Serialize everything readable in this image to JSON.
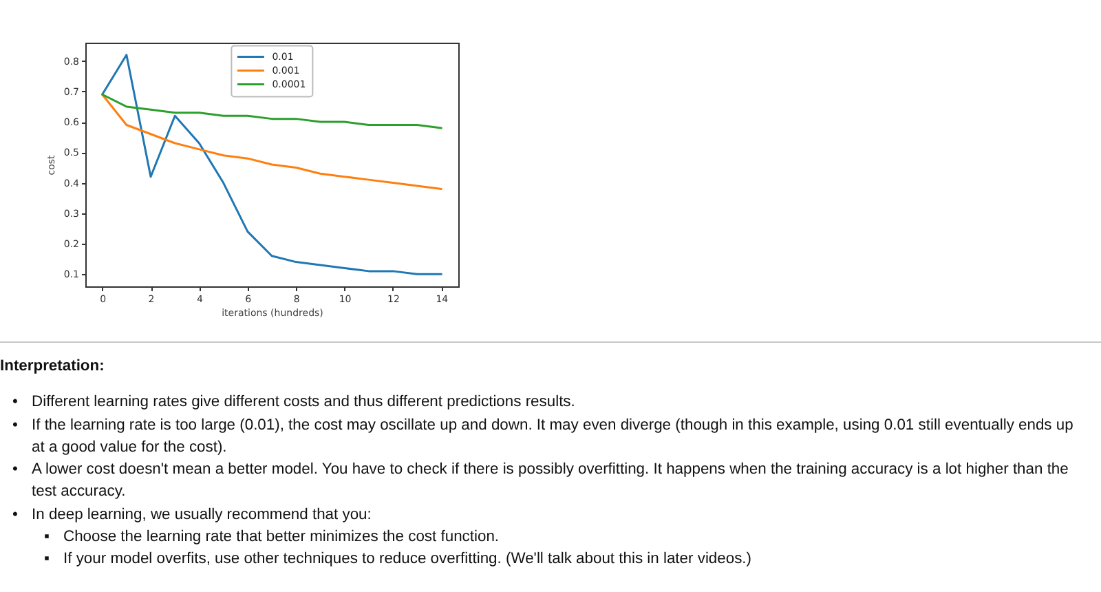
{
  "chart_data": {
    "type": "line",
    "xlabel": "iterations (hundreds)",
    "ylabel": "cost",
    "x": [
      0,
      1,
      2,
      3,
      4,
      5,
      6,
      7,
      8,
      9,
      10,
      11,
      12,
      13,
      14
    ],
    "series": [
      {
        "name": "0.01",
        "color": "#1f77b4",
        "values": [
          0.69,
          0.82,
          0.42,
          0.62,
          0.53,
          0.4,
          0.24,
          0.16,
          0.14,
          0.13,
          0.12,
          0.11,
          0.11,
          0.1,
          0.1
        ]
      },
      {
        "name": "0.001",
        "color": "#ff7f0e",
        "values": [
          0.69,
          0.59,
          0.56,
          0.53,
          0.51,
          0.49,
          0.48,
          0.46,
          0.45,
          0.43,
          0.42,
          0.41,
          0.4,
          0.39,
          0.38
        ]
      },
      {
        "name": "0.0001",
        "color": "#2ca02c",
        "values": [
          0.69,
          0.65,
          0.64,
          0.63,
          0.63,
          0.62,
          0.62,
          0.61,
          0.61,
          0.6,
          0.6,
          0.59,
          0.59,
          0.59,
          0.58
        ]
      }
    ],
    "xlim": [
      -0.7,
      14.7
    ],
    "ylim": [
      0.06,
      0.86
    ],
    "xticks": [
      0,
      2,
      4,
      6,
      8,
      10,
      12,
      14
    ],
    "yticks": [
      0.1,
      0.2,
      0.3,
      0.4,
      0.5,
      0.6,
      0.7,
      0.8
    ],
    "legend": "top",
    "line_style": "solid",
    "annotations": [
      "Interpretation:",
      "• Different learning rates give different costs and thus different predictions results.",
      "• If the learning rate is too large (0.01), the cost may oscillate up and down. It may even diverge (though in this example, using 0.01 still eventually ends up at a good value for the cost).",
      "• A lower cost doesn't mean a better model. You have to check if there is possibly overfitting. It happens when the training accuracy is a lot higher than the test accuracy.",
      "• In deep learning, we usually recommend that you:",
      "▪ Choose the learning rate that better minimizes the cost function.",
      "▪ If your model overfits, use other techniques to reduce overfitting. (We'll talk about this in later videos.)"
    ]
  }
}
